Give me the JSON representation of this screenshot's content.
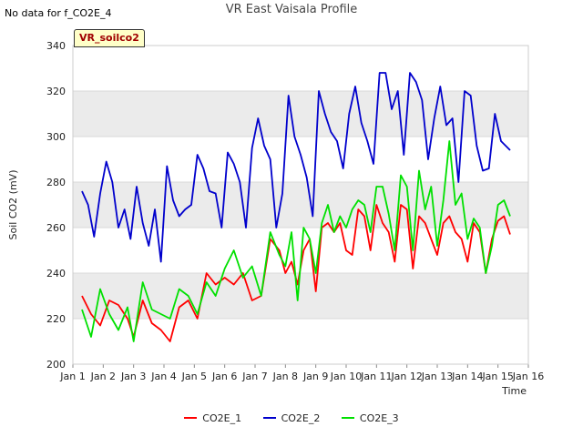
{
  "header": {
    "nodata_note": "No data for f_CO2E_4",
    "title": "VR East Vaisala Profile",
    "site_badge": "VR_soilco2"
  },
  "colors": {
    "CO2E_1": "#ff0000",
    "CO2E_2": "#0000cc",
    "CO2E_3": "#00e000",
    "band": "#ebebeb",
    "grid": "#d9d9d9"
  },
  "chart_data": {
    "type": "line",
    "title": "VR East Vaisala Profile",
    "xlabel": "Time",
    "ylabel": "Soil CO2 (mV)",
    "xlim": [
      1,
      16
    ],
    "ylim": [
      200,
      340
    ],
    "xticks": [
      1,
      2,
      3,
      4,
      5,
      6,
      7,
      8,
      9,
      10,
      11,
      12,
      13,
      14,
      15,
      16
    ],
    "xtick_labels": [
      "Jan 1",
      "Jan 2",
      "Jan 3",
      "Jan 4",
      "Jan 5",
      "Jan 6",
      "Jan 7",
      "Jan 8",
      "Jan 9",
      "Jan 10",
      "Jan 11",
      "Jan 12",
      "Jan 13",
      "Jan 14",
      "Jan 15",
      "Jan 16"
    ],
    "yticks": [
      200,
      220,
      240,
      260,
      280,
      300,
      320,
      340
    ],
    "ytick_labels": [
      "200",
      "220",
      "240",
      "260",
      "280",
      "300",
      "320",
      "340"
    ],
    "legend_position": "bottom-center",
    "series": [
      {
        "name": "CO2E_1",
        "color": "#ff0000",
        "x": [
          1.3,
          1.6,
          1.9,
          2.2,
          2.5,
          2.8,
          3.0,
          3.3,
          3.6,
          3.9,
          4.2,
          4.5,
          4.8,
          5.1,
          5.4,
          5.7,
          6.0,
          6.3,
          6.6,
          6.9,
          7.2,
          7.5,
          7.8,
          8.0,
          8.2,
          8.4,
          8.6,
          8.8,
          9.0,
          9.2,
          9.4,
          9.6,
          9.8,
          10.0,
          10.2,
          10.4,
          10.6,
          10.8,
          11.0,
          11.2,
          11.4,
          11.6,
          11.8,
          12.0,
          12.2,
          12.4,
          12.6,
          12.8,
          13.0,
          13.2,
          13.4,
          13.6,
          13.8,
          14.0,
          14.2,
          14.4,
          14.6,
          14.8,
          15.0,
          15.2,
          15.4
        ],
        "y": [
          230,
          222,
          217,
          228,
          226,
          220,
          212,
          228,
          218,
          215,
          210,
          225,
          228,
          220,
          240,
          235,
          238,
          235,
          240,
          228,
          230,
          255,
          250,
          240,
          245,
          235,
          250,
          255,
          232,
          260,
          262,
          258,
          262,
          250,
          248,
          268,
          265,
          250,
          270,
          262,
          258,
          245,
          270,
          268,
          242,
          265,
          262,
          255,
          248,
          262,
          265,
          258,
          255,
          245,
          262,
          258,
          240,
          255,
          263,
          265,
          257
        ]
      },
      {
        "name": "CO2E_2",
        "color": "#0000cc",
        "x": [
          1.3,
          1.5,
          1.7,
          1.9,
          2.1,
          2.3,
          2.5,
          2.7,
          2.9,
          3.1,
          3.3,
          3.5,
          3.7,
          3.9,
          4.1,
          4.3,
          4.5,
          4.7,
          4.9,
          5.1,
          5.3,
          5.5,
          5.7,
          5.9,
          6.1,
          6.3,
          6.5,
          6.7,
          6.9,
          7.1,
          7.3,
          7.5,
          7.7,
          7.9,
          8.1,
          8.3,
          8.5,
          8.7,
          8.9,
          9.1,
          9.3,
          9.5,
          9.7,
          9.9,
          10.1,
          10.3,
          10.5,
          10.7,
          10.9,
          11.1,
          11.3,
          11.5,
          11.7,
          11.9,
          12.1,
          12.3,
          12.5,
          12.7,
          12.9,
          13.1,
          13.3,
          13.5,
          13.7,
          13.9,
          14.1,
          14.3,
          14.5,
          14.7,
          14.9,
          15.1,
          15.4
        ],
        "y": [
          276,
          270,
          256,
          275,
          289,
          280,
          260,
          268,
          255,
          278,
          262,
          252,
          268,
          245,
          287,
          272,
          265,
          268,
          270,
          292,
          286,
          276,
          275,
          260,
          293,
          288,
          280,
          260,
          295,
          308,
          296,
          290,
          260,
          275,
          318,
          300,
          292,
          282,
          265,
          320,
          310,
          302,
          298,
          286,
          310,
          322,
          306,
          298,
          288,
          328,
          328,
          312,
          320,
          292,
          328,
          324,
          316,
          290,
          308,
          322,
          305,
          308,
          280,
          320,
          318,
          296,
          285,
          286,
          310,
          298,
          294
        ]
      },
      {
        "name": "CO2E_3",
        "color": "#00e000",
        "x": [
          1.3,
          1.6,
          1.9,
          2.2,
          2.5,
          2.8,
          3.0,
          3.3,
          3.6,
          3.9,
          4.2,
          4.5,
          4.8,
          5.1,
          5.4,
          5.7,
          6.0,
          6.3,
          6.6,
          6.9,
          7.2,
          7.5,
          7.8,
          8.0,
          8.2,
          8.4,
          8.6,
          8.8,
          9.0,
          9.2,
          9.4,
          9.6,
          9.8,
          10.0,
          10.2,
          10.4,
          10.6,
          10.8,
          11.0,
          11.2,
          11.4,
          11.6,
          11.8,
          12.0,
          12.2,
          12.4,
          12.6,
          12.8,
          13.0,
          13.2,
          13.4,
          13.6,
          13.8,
          14.0,
          14.2,
          14.4,
          14.6,
          14.8,
          15.0,
          15.2,
          15.4
        ],
        "y": [
          224,
          212,
          233,
          222,
          215,
          225,
          210,
          236,
          224,
          222,
          220,
          233,
          230,
          222,
          236,
          230,
          242,
          250,
          238,
          243,
          230,
          258,
          248,
          243,
          258,
          228,
          260,
          255,
          240,
          262,
          270,
          258,
          265,
          260,
          268,
          272,
          270,
          258,
          278,
          278,
          266,
          250,
          283,
          278,
          250,
          285,
          268,
          278,
          252,
          272,
          298,
          270,
          275,
          255,
          264,
          260,
          240,
          252,
          270,
          272,
          265
        ]
      }
    ]
  }
}
